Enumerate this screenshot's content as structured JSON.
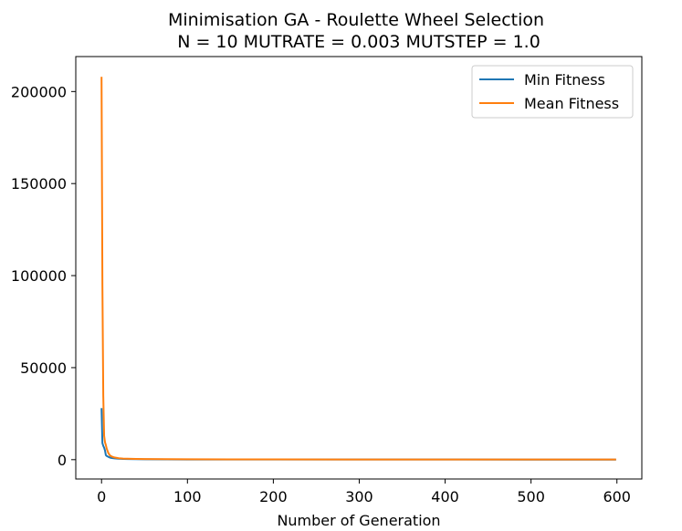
{
  "chart_data": {
    "type": "line",
    "title": "Minimisation GA - Roulette Wheel Selection",
    "subtitle": "N = 10 MUTRATE = 0.003 MUTSTEP = 1.0",
    "xlabel": "Number of Generation",
    "ylabel": "",
    "xlim": [
      -30,
      629
    ],
    "ylim": [
      -10500,
      219000
    ],
    "x_ticks": [
      0,
      100,
      200,
      300,
      400,
      500,
      600
    ],
    "y_ticks": [
      0,
      50000,
      100000,
      150000,
      200000
    ],
    "grid": false,
    "legend_position": "top-right",
    "series": [
      {
        "name": "Min Fitness",
        "color": "#1f77b4",
        "x": [
          0,
          1,
          2,
          3,
          4,
          5,
          6,
          8,
          10,
          12,
          15,
          20,
          25,
          30,
          40,
          50,
          75,
          100,
          150,
          200,
          300,
          400,
          500,
          599
        ],
        "y": [
          28000,
          9000,
          7500,
          6500,
          5000,
          2500,
          2000,
          1500,
          1100,
          900,
          700,
          500,
          400,
          320,
          250,
          200,
          150,
          120,
          100,
          90,
          80,
          70,
          60,
          50
        ]
      },
      {
        "name": "Mean Fitness",
        "color": "#ff7f0e",
        "x": [
          0,
          1,
          2,
          3,
          4,
          5,
          6,
          8,
          10,
          12,
          15,
          20,
          25,
          30,
          40,
          50,
          75,
          100,
          150,
          200,
          300,
          400,
          500,
          599
        ],
        "y": [
          208000,
          95000,
          35000,
          13000,
          9500,
          8000,
          6000,
          3500,
          2200,
          1700,
          1200,
          800,
          600,
          500,
          400,
          320,
          250,
          200,
          160,
          140,
          120,
          110,
          100,
          90
        ]
      }
    ]
  }
}
